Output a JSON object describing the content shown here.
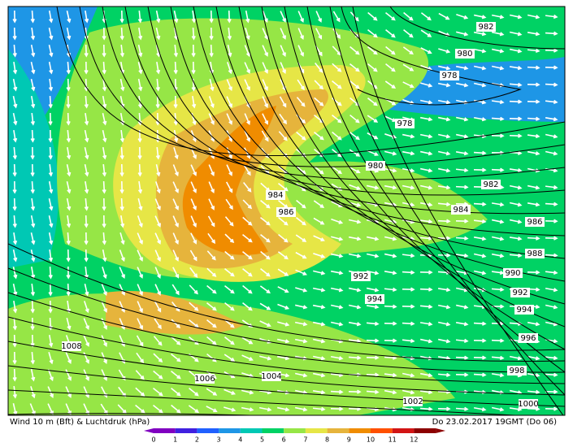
{
  "map": {
    "isobar_labels": [
      "982",
      "980",
      "978",
      "978",
      "980",
      "984",
      "986",
      "982",
      "984",
      "986",
      "988",
      "990",
      "992",
      "992",
      "994",
      "994",
      "996",
      "998",
      "1000",
      "1002",
      "1004",
      "1006",
      "1008"
    ],
    "footer": {
      "left": "Wind 10 m (Bft) & Luchtdruk (hPa)",
      "right": "Do 23.02.2017 19GMT (Do 06)"
    },
    "colorbar": {
      "labels": [
        "0",
        "1",
        "2",
        "3",
        "4",
        "5",
        "6",
        "7",
        "8",
        "9",
        "10",
        "11",
        "12"
      ],
      "colors": [
        "#8000c0",
        "#4020e0",
        "#2060ff",
        "#1e96e6",
        "#00c8b4",
        "#00d264",
        "#96e646",
        "#e6e646",
        "#e6b43c",
        "#f08c00",
        "#ff5000",
        "#d21414",
        "#8c0000"
      ]
    }
  }
}
